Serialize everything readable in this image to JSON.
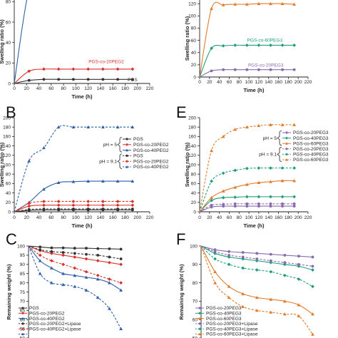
{
  "chart_data": [
    {
      "id": "A",
      "type": "scatter",
      "letter": "",
      "xlabel": "Time (h)",
      "ylabel": "Swelling ratio (%)",
      "xlim": [
        0,
        220
      ],
      "ylim": [
        0,
        120
      ],
      "xticks": [
        0,
        20,
        40,
        60,
        80,
        100,
        120,
        140,
        160,
        180,
        200,
        220
      ],
      "yticks": [
        0,
        20,
        40,
        60,
        80,
        100
      ],
      "series": [
        {
          "name": "",
          "color": "#2f5fa8",
          "marker": "triangle",
          "dashed": false,
          "x": [
            0,
            24,
            48,
            72,
            96,
            120,
            144,
            168,
            192
          ],
          "y": [
            0,
            92,
            104,
            107,
            108,
            109,
            108,
            109,
            110
          ]
        },
        {
          "name": "PGS-co-20PEG2",
          "color": "#d9322b",
          "marker": "diamond",
          "dashed": false,
          "x": [
            0,
            24,
            48,
            72,
            96,
            120,
            144,
            168,
            192
          ],
          "y": [
            0,
            12,
            14,
            14,
            14,
            14,
            14,
            14,
            14
          ]
        },
        {
          "name": "PGS",
          "color": "#333333",
          "marker": "circle",
          "dashed": false,
          "x": [
            0,
            24,
            48,
            72,
            96,
            120,
            144,
            168,
            192
          ],
          "y": [
            0,
            3,
            4,
            4,
            4,
            4,
            4,
            4,
            4
          ]
        }
      ],
      "annotations": [
        {
          "text": "PGS-co-20PEG2",
          "color": "#d9322b",
          "x": 178,
          "y": 20
        },
        {
          "text": "PGS",
          "color": "#333333",
          "x": 200,
          "y": 2
        }
      ]
    },
    {
      "id": "D",
      "type": "scatter",
      "letter": "",
      "xlabel": "Time (h)",
      "ylabel": "Swelling ratio (%)",
      "xlim": [
        0,
        220
      ],
      "ylim": [
        0,
        140
      ],
      "xticks": [
        0,
        20,
        40,
        60,
        80,
        100,
        120,
        140,
        160,
        180,
        200,
        220
      ],
      "yticks": [
        0,
        20,
        40,
        60,
        80,
        100,
        120
      ],
      "series": [
        {
          "name": "",
          "color": "#e07b2a",
          "marker": "triangle",
          "dashed": false,
          "x": [
            0,
            24,
            48,
            72,
            96,
            120,
            144,
            168,
            192
          ],
          "y": [
            0,
            112,
            118,
            119,
            119,
            120,
            120,
            120,
            119
          ]
        },
        {
          "name": "PGS-co-60PEG3",
          "color": "#1e9e7a",
          "marker": "diamond",
          "dashed": false,
          "x": [
            0,
            24,
            48,
            72,
            96,
            120,
            144,
            168,
            192
          ],
          "y": [
            0,
            47,
            51,
            52,
            52,
            52,
            52,
            52,
            52
          ]
        },
        {
          "name": "PGS-co-20PEG3",
          "color": "#8a6bb0",
          "marker": "circle",
          "dashed": false,
          "x": [
            0,
            24,
            48,
            72,
            96,
            120,
            144,
            168,
            192
          ],
          "y": [
            0,
            10,
            12,
            12,
            12,
            12,
            12,
            12,
            12
          ]
        }
      ],
      "annotations": [
        {
          "text": "PGS-co-60PEG3",
          "color": "#1e9e7a",
          "x": 168,
          "y": 58
        },
        {
          "text": "PGS-co-20PEG3",
          "color": "#8a6bb0",
          "x": 170,
          "y": 17
        }
      ]
    },
    {
      "id": "B",
      "type": "scatter",
      "letter": "B",
      "xlabel": "Time (h)",
      "ylabel": "Swelling ratio (%)",
      "xlim": [
        0,
        220
      ],
      "ylim": [
        0,
        200
      ],
      "xticks": [
        0,
        20,
        40,
        60,
        80,
        100,
        120,
        140,
        160,
        180,
        200,
        220
      ],
      "yticks": [
        0,
        20,
        40,
        60,
        80,
        100,
        120,
        140,
        160,
        180,
        200
      ],
      "groups": [
        {
          "label": "pH = 5",
          "y_from": 0,
          "y_to": 2
        },
        {
          "label": "pH = 9.1",
          "y_from": 3,
          "y_to": 5
        }
      ],
      "series": [
        {
          "name": "PGS",
          "color": "#333333",
          "marker": "circle",
          "dashed": false,
          "x": [
            0,
            24,
            48,
            72,
            96,
            120,
            144,
            168,
            192
          ],
          "y": [
            0,
            3,
            4,
            4,
            4,
            4,
            4,
            4,
            4
          ]
        },
        {
          "name": "PGS-co-20PEG2",
          "color": "#d9322b",
          "marker": "diamond",
          "dashed": false,
          "x": [
            0,
            24,
            48,
            72,
            96,
            120,
            144,
            168,
            192
          ],
          "y": [
            0,
            12,
            14,
            14,
            14,
            14,
            14,
            14,
            14
          ]
        },
        {
          "name": "PGS-co-40PEG2",
          "color": "#2f5fa8",
          "marker": "triangle",
          "dashed": false,
          "x": [
            0,
            24,
            48,
            72,
            96,
            120,
            144,
            168,
            192
          ],
          "y": [
            0,
            20,
            48,
            62,
            64,
            65,
            65,
            65,
            65
          ]
        },
        {
          "name": "PGS",
          "color": "#333333",
          "marker": "circle",
          "dashed": true,
          "x": [
            0,
            24,
            48,
            72,
            96,
            120,
            144,
            168,
            192
          ],
          "y": [
            0,
            5,
            6,
            6,
            6,
            6,
            6,
            6,
            6
          ]
        },
        {
          "name": "PGS-co-20PEG2",
          "color": "#d9322b",
          "marker": "diamond",
          "dashed": true,
          "x": [
            0,
            24,
            48,
            72,
            96,
            120,
            144,
            168,
            192
          ],
          "y": [
            0,
            18,
            22,
            22,
            22,
            22,
            22,
            22,
            22
          ]
        },
        {
          "name": "PGS-co-40PEG2",
          "color": "#2f5fa8",
          "marker": "triangle",
          "dashed": true,
          "x": [
            0,
            24,
            48,
            72,
            96,
            120,
            144,
            168,
            192
          ],
          "y": [
            0,
            108,
            136,
            180,
            180,
            180,
            180,
            180,
            180
          ]
        }
      ]
    },
    {
      "id": "E",
      "type": "scatter",
      "letter": "E",
      "xlabel": "Time (h)",
      "ylabel": "Swelling ratio (%)",
      "xlim": [
        0,
        220
      ],
      "ylim": [
        0,
        200
      ],
      "xticks": [
        0,
        20,
        40,
        60,
        80,
        100,
        120,
        140,
        160,
        180,
        200,
        220
      ],
      "yticks": [
        0,
        20,
        40,
        60,
        80,
        100,
        120,
        140,
        160,
        180,
        200
      ],
      "groups": [
        {
          "label": "pH = 5",
          "y_from": 0,
          "y_to": 2
        },
        {
          "label": "pH = 9.1",
          "y_from": 3,
          "y_to": 5
        }
      ],
      "series": [
        {
          "name": "PGS-co-20PEG3",
          "color": "#8a6bb0",
          "marker": "circle",
          "dashed": false,
          "x": [
            0,
            24,
            48,
            72,
            96,
            120,
            144,
            168,
            192
          ],
          "y": [
            0,
            10,
            12,
            12,
            12,
            12,
            12,
            12,
            12
          ]
        },
        {
          "name": "PGS-co-40PEG3",
          "color": "#1e9e7a",
          "marker": "diamond",
          "dashed": false,
          "x": [
            0,
            24,
            48,
            72,
            96,
            120,
            144,
            168,
            192
          ],
          "y": [
            0,
            24,
            30,
            31,
            32,
            32,
            32,
            32,
            32
          ]
        },
        {
          "name": "PGS-co-60PEG3",
          "color": "#e07b2a",
          "marker": "triangle",
          "dashed": false,
          "x": [
            0,
            24,
            48,
            72,
            96,
            120,
            144,
            168,
            192
          ],
          "y": [
            0,
            30,
            44,
            52,
            58,
            62,
            64,
            66,
            66
          ]
        },
        {
          "name": "PGS-co-20PEG3",
          "color": "#8a6bb0",
          "marker": "circle",
          "dashed": true,
          "x": [
            0,
            24,
            48,
            72,
            96,
            120,
            144,
            168,
            192
          ],
          "y": [
            0,
            14,
            16,
            17,
            17,
            17,
            17,
            17,
            17
          ]
        },
        {
          "name": "PGS-co-40PEG3",
          "color": "#1e9e7a",
          "marker": "diamond",
          "dashed": true,
          "x": [
            0,
            24,
            48,
            72,
            96,
            120,
            144,
            168,
            192
          ],
          "y": [
            0,
            65,
            82,
            88,
            92,
            93,
            93,
            93,
            93
          ]
        },
        {
          "name": "PGS-co-60PEG3",
          "color": "#e07b2a",
          "marker": "triangle",
          "dashed": true,
          "x": [
            0,
            24,
            48,
            72,
            96,
            120,
            144,
            168,
            192
          ],
          "y": [
            0,
            130,
            160,
            175,
            180,
            183,
            185,
            185,
            185
          ]
        }
      ]
    },
    {
      "id": "C",
      "type": "scatter",
      "letter": "C",
      "xlabel": "",
      "ylabel": "Remaining weight (%)",
      "xlim": [
        0,
        200
      ],
      "ylim": [
        50,
        100
      ],
      "xticks": [],
      "yticks": [
        50,
        55,
        60,
        65,
        70,
        75,
        80,
        85,
        90,
        95,
        100
      ],
      "series": [
        {
          "name": "PGS",
          "color": "#333333",
          "marker": "circle",
          "dashed": false,
          "x": [
            0,
            24,
            48,
            72,
            96,
            120,
            144,
            168,
            192
          ],
          "y": [
            100,
            99.5,
            99,
            99,
            98.8,
            98.8,
            98.6,
            98.5,
            98.3
          ]
        },
        {
          "name": "PGS-co-20PEG2",
          "color": "#d9322b",
          "marker": "diamond",
          "dashed": false,
          "x": [
            0,
            24,
            48,
            72,
            96,
            120,
            144,
            168,
            192
          ],
          "y": [
            100,
            97.5,
            96,
            95,
            94,
            93,
            92,
            91,
            90
          ]
        },
        {
          "name": "PGS-co-40PEG2",
          "color": "#2f5fa8",
          "marker": "triangle",
          "dashed": false,
          "x": [
            0,
            24,
            48,
            72,
            96,
            120,
            144,
            168,
            192
          ],
          "y": [
            100,
            92,
            88,
            85,
            84,
            83,
            82,
            80,
            76
          ]
        },
        {
          "name": "PGS-co-20PEG2+Lipase",
          "color": "#333333",
          "marker": "circle",
          "dashed": true,
          "x": [
            0,
            24,
            48,
            72,
            96,
            120,
            144,
            168,
            192
          ],
          "y": [
            100,
            98,
            97,
            96.5,
            96,
            95.5,
            95,
            94,
            93
          ]
        },
        {
          "name": "PGS-co-40PEG2+Lipase",
          "color": "#d9322b",
          "marker": "diamond",
          "dashed": true,
          "x": [
            0,
            24,
            48,
            72,
            96,
            120,
            144,
            168,
            192
          ],
          "y": [
            100,
            95,
            92,
            90,
            88,
            86,
            84,
            82,
            80
          ]
        },
        {
          "name": "",
          "color": "#2f5fa8",
          "marker": "triangle",
          "dashed": true,
          "x": [
            0,
            24,
            48,
            72,
            96,
            120,
            144,
            168,
            192
          ],
          "y": [
            100,
            85,
            80,
            79,
            78,
            76,
            72,
            66,
            55
          ]
        }
      ]
    },
    {
      "id": "F",
      "type": "scatter",
      "letter": "F",
      "xlabel": "",
      "ylabel": "Remaining weight (%)",
      "xlim": [
        0,
        200
      ],
      "ylim": [
        50,
        100
      ],
      "xticks": [],
      "yticks": [
        50,
        60,
        70,
        80,
        90,
        100
      ],
      "series": [
        {
          "name": "PGS-co-20PEG3",
          "color": "#8a6bb0",
          "marker": "circle",
          "dashed": false,
          "x": [
            0,
            24,
            48,
            72,
            96,
            120,
            144,
            168,
            192
          ],
          "y": [
            100,
            98,
            97,
            96.5,
            96,
            95.5,
            95,
            94.5,
            94
          ]
        },
        {
          "name": "PGS-co-40PEG3",
          "color": "#1e9e7a",
          "marker": "diamond",
          "dashed": false,
          "x": [
            0,
            24,
            48,
            72,
            96,
            120,
            144,
            168,
            192
          ],
          "y": [
            100,
            96,
            94,
            93,
            92,
            91,
            90,
            89,
            87
          ]
        },
        {
          "name": "PGS-co-60PEG3",
          "color": "#e07b2a",
          "marker": "triangle",
          "dashed": false,
          "x": [
            0,
            24,
            48,
            72,
            96,
            120,
            144,
            168,
            192
          ],
          "y": [
            100,
            86,
            78,
            74,
            72,
            71,
            70,
            68,
            63
          ]
        },
        {
          "name": "PGS-co-20PEG3+Lipase",
          "color": "#8a6bb0",
          "marker": "circle",
          "dashed": true,
          "x": [
            0,
            24,
            48,
            72,
            96,
            120,
            144,
            168,
            192
          ],
          "y": [
            100,
            97,
            95,
            94,
            93,
            92,
            91,
            90,
            89
          ]
        },
        {
          "name": "PGS-co-40PEG3+Lipase",
          "color": "#1e9e7a",
          "marker": "diamond",
          "dashed": true,
          "x": [
            0,
            24,
            48,
            72,
            96,
            120,
            144,
            168,
            192
          ],
          "y": [
            100,
            93,
            90,
            88,
            87,
            86,
            84,
            82,
            78
          ]
        },
        {
          "name": "PGS-co-60PEG3+Lipase",
          "color": "#e07b2a",
          "marker": "triangle",
          "dashed": true,
          "x": [
            0,
            24,
            48,
            72,
            96,
            120,
            144,
            168,
            192
          ],
          "y": [
            100,
            80,
            72,
            67,
            65,
            64,
            63,
            62,
            52
          ]
        }
      ]
    }
  ]
}
